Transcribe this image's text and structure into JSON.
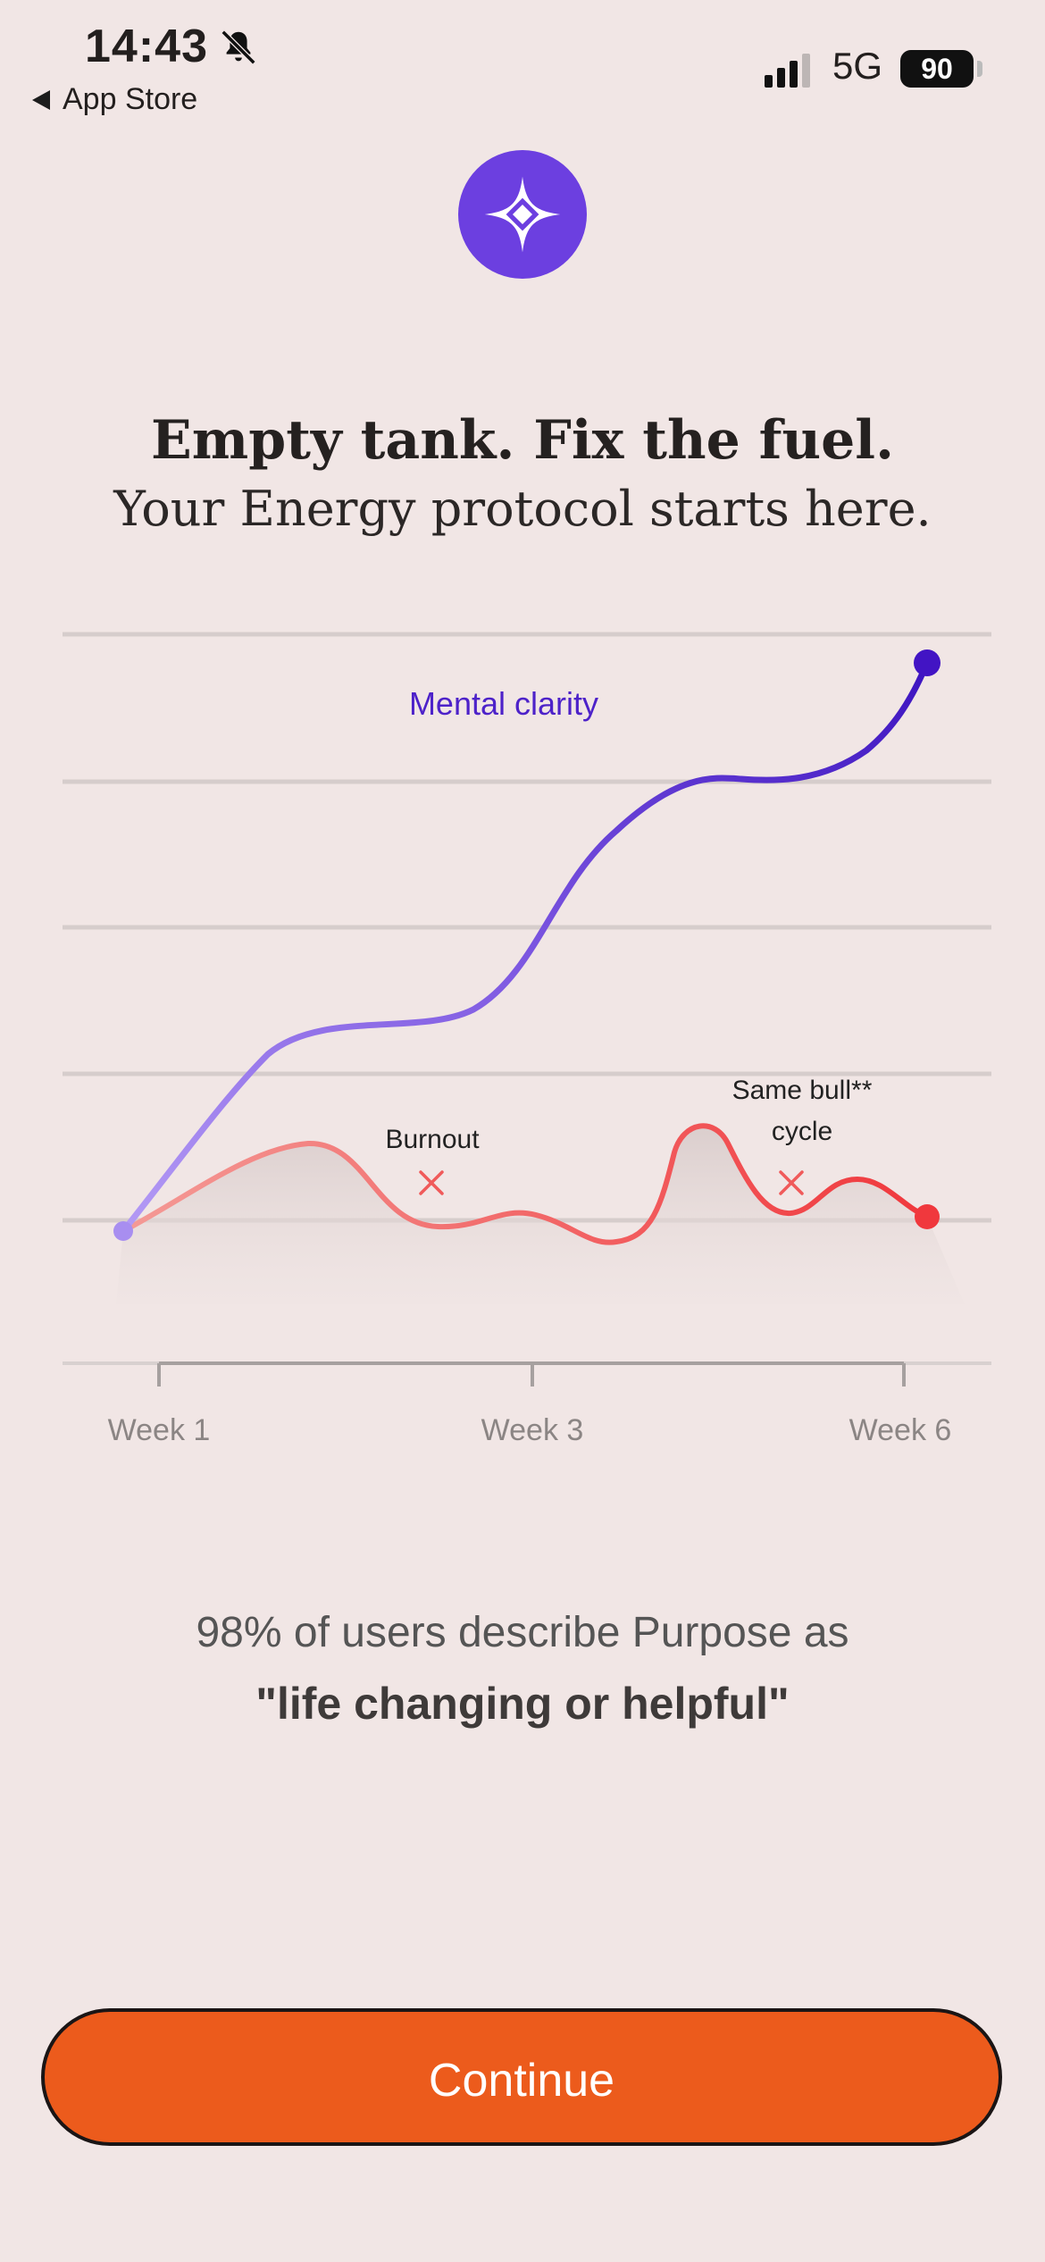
{
  "status_bar": {
    "time": "14:43",
    "back_label": "App Store",
    "network": "5G",
    "battery": "90"
  },
  "header": {
    "title": "Empty tank. Fix the fuel.",
    "subtitle": "Your Energy protocol starts here."
  },
  "chart_data": {
    "type": "line",
    "x_ticks": [
      "Week 1",
      "Week 3",
      "Week 6"
    ],
    "series": [
      {
        "name": "Mental clarity",
        "color": "#5b2fd6"
      }
    ],
    "annotations": [
      "Burnout",
      "Same bull**",
      "cycle"
    ],
    "grid": true,
    "legend_position": "top-center"
  },
  "stats": {
    "line1": "98% of users describe Purpose as",
    "line2": "\"life changing or helpful\""
  },
  "cta": {
    "label": "Continue",
    "color": "#ec5b1c"
  },
  "colors": {
    "background": "#f1e6e5",
    "accent": "#6c3fe0",
    "red_line": "#f0484a"
  }
}
